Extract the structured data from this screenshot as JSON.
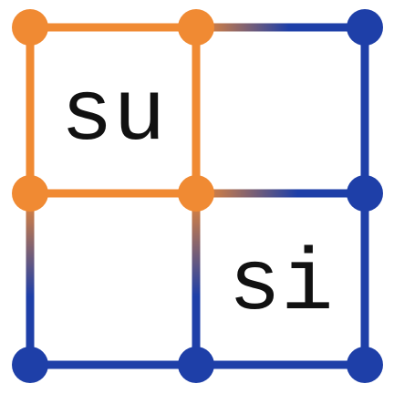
{
  "logo": {
    "top_left_text": "su",
    "bottom_right_text": "si"
  },
  "colors": {
    "orange": "#F08A33",
    "blue": "#1E3FA8",
    "text": "#111111",
    "background": "#ffffff"
  }
}
